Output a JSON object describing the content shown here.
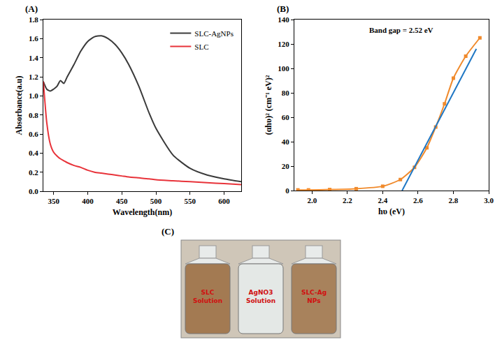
{
  "chart_data": [
    {
      "type": "line",
      "label": "(A)",
      "x_label": "Wavelength(nm)",
      "y_label": "Absorbance(a.u)",
      "x": [
        335,
        340,
        345,
        350,
        355,
        360,
        365,
        370,
        380,
        390,
        400,
        410,
        420,
        430,
        440,
        450,
        460,
        475,
        490,
        500,
        525,
        550,
        575,
        600,
        625
      ],
      "series": [
        {
          "name": "SLC-AgNPs",
          "color": "#3a3a3a",
          "values": [
            1.15,
            1.07,
            1.05,
            1.07,
            1.1,
            1.16,
            1.13,
            1.2,
            1.33,
            1.47,
            1.57,
            1.62,
            1.63,
            1.6,
            1.54,
            1.45,
            1.33,
            1.1,
            0.82,
            0.66,
            0.38,
            0.24,
            0.17,
            0.13,
            0.1
          ]
        },
        {
          "name": "SLC",
          "color": "#e8333a",
          "values": [
            1.15,
            0.72,
            0.5,
            0.41,
            0.37,
            0.34,
            0.32,
            0.3,
            0.27,
            0.25,
            0.22,
            0.2,
            0.19,
            0.18,
            0.17,
            0.16,
            0.15,
            0.14,
            0.13,
            0.12,
            0.11,
            0.1,
            0.09,
            0.08,
            0.07
          ]
        }
      ],
      "xlim": [
        335,
        625
      ],
      "xticks": [
        350,
        400,
        450,
        500,
        550,
        600
      ],
      "ylim": [
        0,
        1.8
      ],
      "yticks": [
        {
          "value": 0,
          "label": "0.0"
        },
        0.2,
        0.4,
        0.6,
        0.8,
        {
          "value": 1,
          "label": "1.0"
        },
        1.2,
        1.4,
        1.6,
        1.8
      ],
      "grid": false,
      "legend": "upper right"
    },
    {
      "type": "line",
      "label": "(B)",
      "x_label": "hυ (eV)",
      "y_label": "(αhυ)² (cm⁻¹ eV)²",
      "annotations": [
        "Band gap = 2.52 eV"
      ],
      "series": [
        {
          "color": "#f08a2c",
          "marker": "square",
          "line_style": "solid",
          "x": [
            1.92,
            1.98,
            2.1,
            2.25,
            2.4,
            2.5,
            2.58,
            2.65,
            2.7,
            2.75,
            2.8,
            2.87,
            2.95
          ],
          "values": [
            0.5,
            0.5,
            0.8,
            1.5,
            3.5,
            9,
            19,
            35,
            52,
            71,
            92,
            110,
            125
          ]
        },
        {
          "color": "#1f77c4",
          "line_style": "solid",
          "x": [
            2.51,
            2.93
          ],
          "values": [
            0,
            116
          ]
        }
      ],
      "xlim": [
        1.9,
        3.0
      ],
      "xticks": [
        {
          "value": 2,
          "label": "2.0"
        },
        2.2,
        2.4,
        2.6,
        2.8,
        {
          "value": 3,
          "label": "3.0"
        }
      ],
      "ylim": [
        0,
        140
      ],
      "yticks": [
        0,
        20,
        40,
        60,
        80,
        100,
        120,
        140
      ],
      "grid": false
    }
  ],
  "photo": {
    "label": "(C)",
    "bottles": [
      {
        "label": "SLC Solution",
        "color": "#a37a52"
      },
      {
        "label": "AgNO3 Solution",
        "color": "#e4e8e6"
      },
      {
        "label": "SLC-Ag NPs",
        "color": "#a8825c"
      }
    ]
  }
}
